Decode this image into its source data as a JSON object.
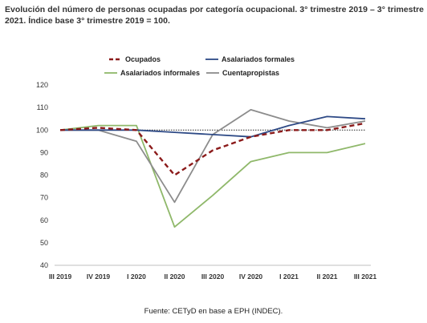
{
  "chart_data": {
    "type": "line",
    "title": "Evolución del número de personas ocupadas por categoría ocupacional. 3° trimestre 2019 – 3° trimestre 2021. Índice base 3° trimestre 2019 = 100.",
    "source": "Fuente: CETyD en base a EPH (INDEC).",
    "categories": [
      "III 2019",
      "IV 2019",
      "I 2020",
      "II 2020",
      "III 2020",
      "IV 2020",
      "I 2021",
      "II 2021",
      "III 2021"
    ],
    "ylim": [
      40,
      120
    ],
    "yticks": [
      40,
      50,
      60,
      70,
      80,
      90,
      100,
      110,
      120
    ],
    "reference_line": 100,
    "legend_placement": "top",
    "series": [
      {
        "name": "Ocupados",
        "color": "#8b1a1a",
        "dash": "dashed",
        "values": [
          100,
          101,
          100,
          80,
          91,
          97,
          100,
          100,
          103
        ]
      },
      {
        "name": "Asalariados formales",
        "color": "#2e4a86",
        "dash": "solid",
        "values": [
          100,
          100,
          100,
          99,
          98,
          97,
          102,
          106,
          105
        ]
      },
      {
        "name": "Asalariados informales",
        "color": "#8fb86a",
        "dash": "solid",
        "values": [
          100,
          102,
          102,
          57,
          71,
          86,
          90,
          90,
          94
        ]
      },
      {
        "name": "Cuentapropistas",
        "color": "#8c8c8c",
        "dash": "solid",
        "values": [
          100,
          100,
          95,
          68,
          98,
          109,
          104,
          101,
          104
        ]
      }
    ]
  }
}
